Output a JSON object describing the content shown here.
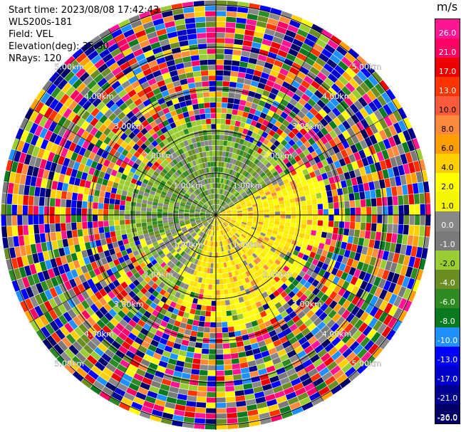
{
  "header": {
    "start_time": "Start time: 2023/08/08 17:42:43",
    "instrument": "WLS200s-181",
    "field": "Field: VEL",
    "elevation": "Elevation(deg): 35.30",
    "nrays": "NRays: 120"
  },
  "colorbar": {
    "unit": "m/s",
    "labels": [
      "26.0",
      "21.0",
      "17.0",
      "13.0",
      "10.0",
      "8.0",
      "6.0",
      "4.0",
      "2.0",
      "1.0",
      "0.0",
      "-1.0",
      "-2.0",
      "-4.0",
      "-6.0",
      "-8.0",
      "-10.0",
      "-13.0",
      "-17.0",
      "-21.0",
      "-26.0",
      "-30.0"
    ],
    "colors": [
      "#ff1493",
      "#ff0066",
      "#ee0000",
      "#ff3300",
      "#ff5a3c",
      "#ff8a3c",
      "#ffa000",
      "#ffd000",
      "#ffff00",
      "#f5f500",
      "#888888",
      "#7a7a7a",
      "#9acd32",
      "#6b8e23",
      "#2e8b22",
      "#0a7a20",
      "#1e90ff",
      "#0000ff",
      "#0000cd",
      "#000090",
      "#000066"
    ]
  },
  "range_rings": [
    "1.00km",
    "2.00km",
    "3.00km",
    "4.00km",
    "5.00km"
  ],
  "image_description_colors": {
    "near_west_north": "#6b8e23",
    "near_east_south": "#ffff00",
    "far": "noise"
  }
}
